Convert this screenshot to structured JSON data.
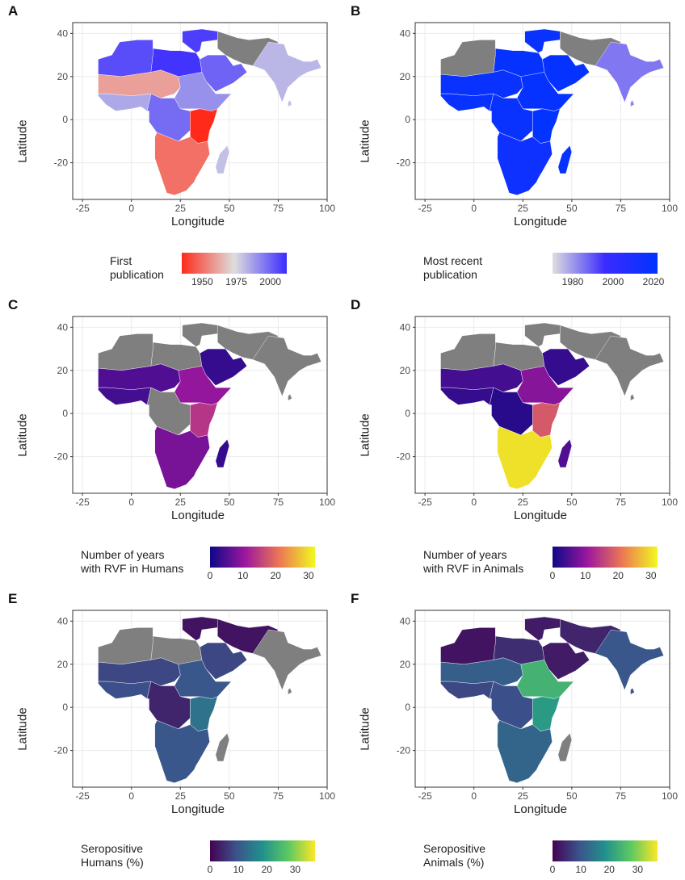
{
  "axes": {
    "x_label": "Longitude",
    "y_label": "Latitude",
    "x_ticks": [
      "-25",
      "0",
      "25",
      "50",
      "75",
      "100"
    ],
    "y_ticks": [
      "40",
      "20",
      "0",
      "-20"
    ],
    "xlim": [
      -30,
      100
    ],
    "ylim": [
      -37,
      45
    ]
  },
  "colors": {
    "panel_bg": "#ffffff",
    "grid": "#ebebeb",
    "border": "#333333",
    "na_gray": "#7f7f7f"
  },
  "chart_data": [
    {
      "type": "choropleth",
      "panel": "A",
      "legend_title": "First\npublication",
      "legend_ticks": [
        "1950",
        "1975",
        "2000"
      ],
      "scale": {
        "min": 1935,
        "max": 2012,
        "colors": [
          "#ff2a1a",
          "#dedede",
          "#3b2bff"
        ]
      }
    },
    {
      "type": "choropleth",
      "panel": "B",
      "legend_title": "Most recent\npublication",
      "legend_ticks": [
        "1980",
        "2000",
        "2020"
      ],
      "scale": {
        "min": 1970,
        "max": 2022,
        "colors": [
          "#dedede",
          "#3b2bff",
          "#0033ff"
        ]
      }
    },
    {
      "type": "choropleth",
      "panel": "C",
      "legend_title": "Number of years\nwith RVF in Humans",
      "legend_ticks": [
        "0",
        "10",
        "20",
        "30"
      ],
      "scale": {
        "min": 0,
        "max": 32,
        "colors": [
          "#0d0887",
          "#9c179e",
          "#ed7953",
          "#f0f921"
        ]
      }
    },
    {
      "type": "choropleth",
      "panel": "D",
      "legend_title": "Number of years\nwith RVF in Animals",
      "legend_ticks": [
        "0",
        "10",
        "20",
        "30"
      ],
      "scale": {
        "min": 0,
        "max": 32,
        "colors": [
          "#0d0887",
          "#9c179e",
          "#ed7953",
          "#f0f921"
        ]
      }
    },
    {
      "type": "choropleth",
      "panel": "E",
      "legend_title": "Seropositive\nHumans (%)",
      "legend_ticks": [
        "0",
        "10",
        "20",
        "30"
      ],
      "scale": {
        "min": 0,
        "max": 37,
        "colors": [
          "#440154",
          "#3b528b",
          "#21918c",
          "#5ec962",
          "#fde725"
        ]
      }
    },
    {
      "type": "choropleth",
      "panel": "F",
      "legend_title": "Seropositive\nAnimals (%)",
      "legend_ticks": [
        "0",
        "10",
        "20",
        "30"
      ],
      "scale": {
        "min": 0,
        "max": 37,
        "colors": [
          "#440154",
          "#3b528b",
          "#21918c",
          "#5ec962",
          "#fde725"
        ]
      }
    }
  ]
}
